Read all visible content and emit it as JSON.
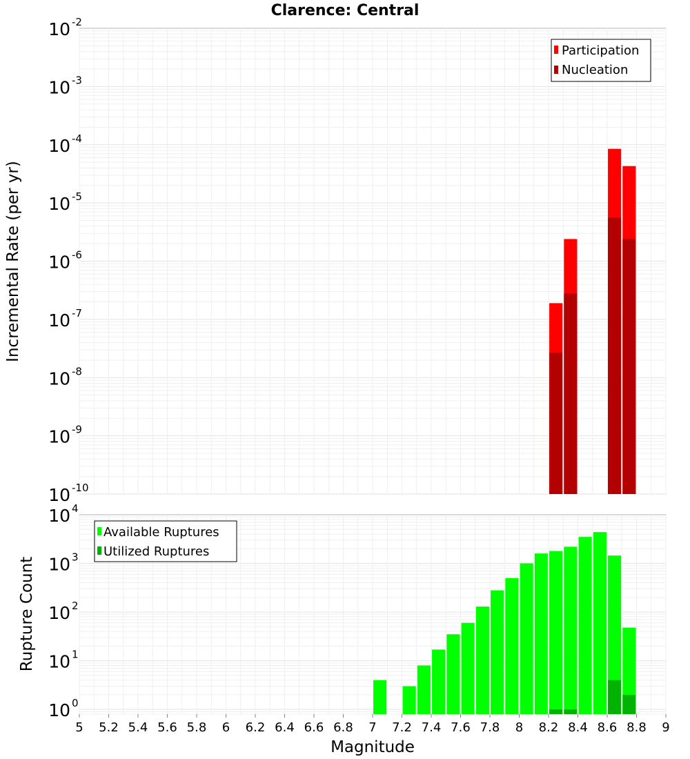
{
  "chart_data": {
    "type": "bar",
    "title": "Clarence: Central",
    "xlabel": "Magnitude",
    "xlim": [
      5,
      9
    ],
    "x_ticks": [
      "5",
      "5.2",
      "5.4",
      "5.6",
      "5.8",
      "6",
      "6.2",
      "6.4",
      "6.6",
      "6.8",
      "7",
      "7.2",
      "7.4",
      "7.6",
      "7.8",
      "8",
      "8.2",
      "8.4",
      "8.6",
      "8.8",
      "9"
    ],
    "panels": [
      {
        "name": "rate",
        "ylabel": "Incremental Rate (per yr)",
        "yscale": "log",
        "ylim": [
          1e-10,
          0.01
        ],
        "y_ticks": [
          {
            "base": "10",
            "exp": "-10",
            "value": 1e-10
          },
          {
            "base": "10",
            "exp": "-9",
            "value": 1e-09
          },
          {
            "base": "10",
            "exp": "-8",
            "value": 1e-08
          },
          {
            "base": "10",
            "exp": "-7",
            "value": 1e-07
          },
          {
            "base": "10",
            "exp": "-6",
            "value": 1e-06
          },
          {
            "base": "10",
            "exp": "-5",
            "value": 1e-05
          },
          {
            "base": "10",
            "exp": "-4",
            "value": 0.0001
          },
          {
            "base": "10",
            "exp": "-3",
            "value": 0.001
          },
          {
            "base": "10",
            "exp": "-2",
            "value": 0.01
          }
        ],
        "legend": {
          "position": "top-right",
          "entries": [
            "Participation",
            "Nucleation"
          ]
        },
        "series": [
          {
            "name": "Participation",
            "color": "#ff0000",
            "points": [
              {
                "x": 8.25,
                "y": 1.9e-07
              },
              {
                "x": 8.35,
                "y": 2.4e-06
              },
              {
                "x": 8.65,
                "y": 8.5e-05
              },
              {
                "x": 8.75,
                "y": 4.3e-05
              }
            ]
          },
          {
            "name": "Nucleation",
            "color": "#b30000",
            "points": [
              {
                "x": 8.25,
                "y": 2.7e-08
              },
              {
                "x": 8.35,
                "y": 2.8e-07
              },
              {
                "x": 8.65,
                "y": 5.6e-06
              },
              {
                "x": 8.75,
                "y": 2.4e-06
              }
            ]
          }
        ]
      },
      {
        "name": "count",
        "ylabel": "Rupture Count",
        "yscale": "log",
        "ylim": [
          0.8,
          10000
        ],
        "y_ticks": [
          {
            "base": "10",
            "exp": "0",
            "value": 1
          },
          {
            "base": "10",
            "exp": "1",
            "value": 10
          },
          {
            "base": "10",
            "exp": "2",
            "value": 100
          },
          {
            "base": "10",
            "exp": "3",
            "value": 1000
          },
          {
            "base": "10",
            "exp": "4",
            "value": 10000
          }
        ],
        "legend": {
          "position": "top-left",
          "entries": [
            "Available Ruptures",
            "Utilized Ruptures"
          ]
        },
        "series": [
          {
            "name": "Available Ruptures",
            "color": "#00ff00",
            "points": [
              {
                "x": 7.05,
                "y": 4
              },
              {
                "x": 7.25,
                "y": 3
              },
              {
                "x": 7.35,
                "y": 8
              },
              {
                "x": 7.45,
                "y": 17
              },
              {
                "x": 7.55,
                "y": 35
              },
              {
                "x": 7.65,
                "y": 60
              },
              {
                "x": 7.75,
                "y": 130
              },
              {
                "x": 7.85,
                "y": 280
              },
              {
                "x": 7.95,
                "y": 500
              },
              {
                "x": 8.05,
                "y": 1000
              },
              {
                "x": 8.15,
                "y": 1600
              },
              {
                "x": 8.25,
                "y": 1800
              },
              {
                "x": 8.35,
                "y": 2200
              },
              {
                "x": 8.45,
                "y": 3500
              },
              {
                "x": 8.55,
                "y": 4400
              },
              {
                "x": 8.65,
                "y": 1450
              },
              {
                "x": 8.75,
                "y": 48
              }
            ]
          },
          {
            "name": "Utilized Ruptures",
            "color": "#00b300",
            "points": [
              {
                "x": 8.25,
                "y": 1
              },
              {
                "x": 8.35,
                "y": 1
              },
              {
                "x": 8.65,
                "y": 4
              },
              {
                "x": 8.75,
                "y": 2
              }
            ]
          }
        ]
      }
    ]
  }
}
